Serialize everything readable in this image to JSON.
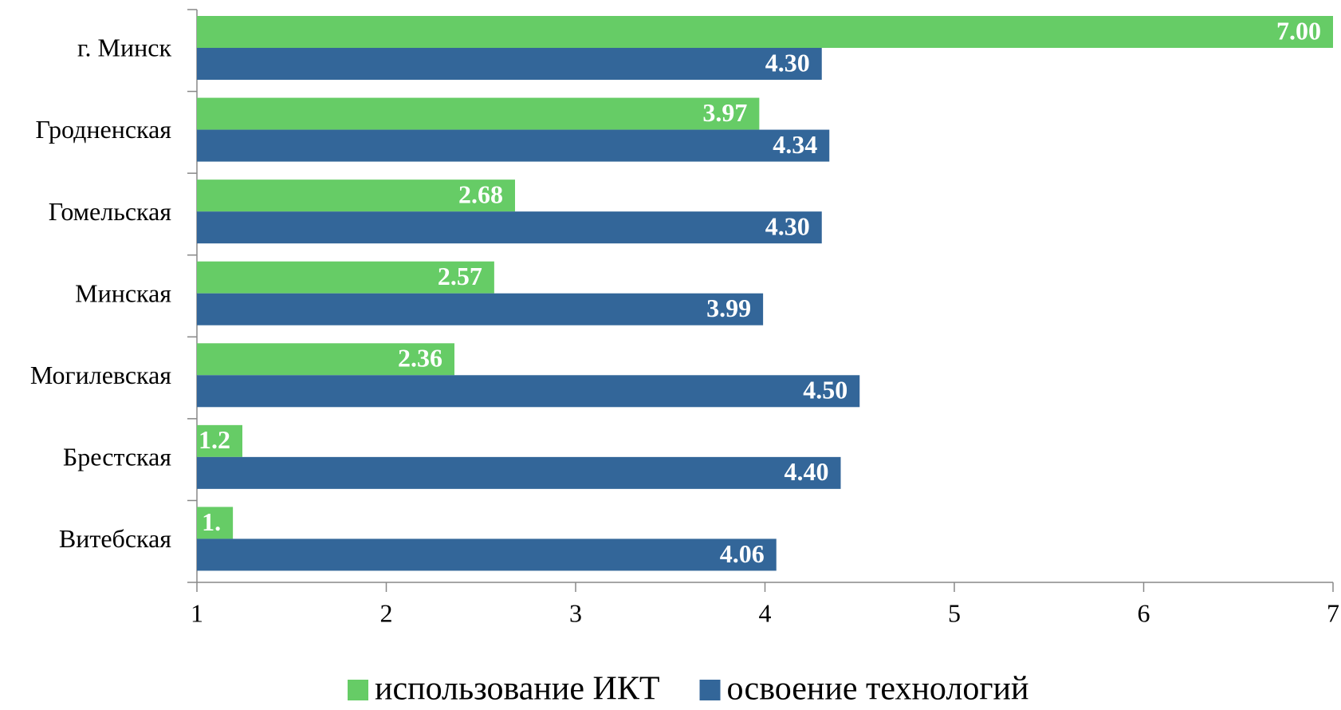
{
  "chart_data": {
    "type": "hbar",
    "categories": [
      "г. Минск",
      "Гродненская",
      "Гомельская",
      "Минская",
      "Могилевская",
      "Брестская",
      "Витебская"
    ],
    "series": [
      {
        "name": "использование ИКТ",
        "color": "#66cc66",
        "values": [
          7.0,
          3.97,
          2.68,
          2.57,
          2.36,
          1.24,
          1.19
        ],
        "value_labels": [
          "7.00",
          "3.97",
          "2.68",
          "2.57",
          "2.36",
          "1.2",
          "1."
        ]
      },
      {
        "name": "освоение технологий",
        "color": "#336699",
        "values": [
          4.3,
          4.34,
          4.3,
          3.99,
          4.5,
          4.4,
          4.06
        ],
        "value_labels": [
          "4.30",
          "4.34",
          "4.30",
          "3.99",
          "4.50",
          "4.40",
          "4.06"
        ]
      }
    ],
    "xlim": [
      1,
      7
    ],
    "xticks": [
      1,
      2,
      3,
      4,
      5,
      6,
      7
    ],
    "legend": "bottom"
  }
}
